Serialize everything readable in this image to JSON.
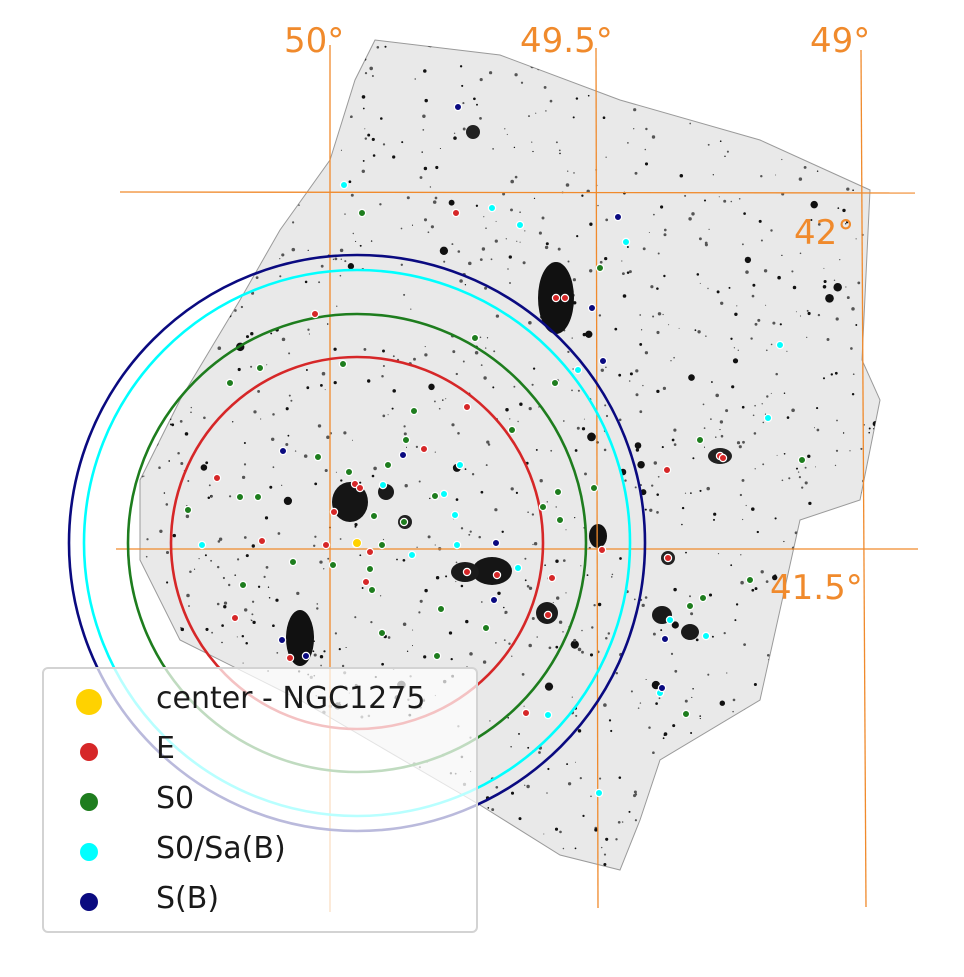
{
  "axis_labels": {
    "ra": [
      "50°",
      "49.5°",
      "49°"
    ],
    "dec": [
      "42°",
      "41.5°"
    ]
  },
  "colors": {
    "grid": "#f08a2c",
    "center": "#ffd200",
    "E": "#d62728",
    "S0": "#1e7d1e",
    "S0_SaB": "#00ffff",
    "SB": "#0a0a80"
  },
  "legend": {
    "items": [
      {
        "label": "center - NGC1275",
        "color": "#ffd200"
      },
      {
        "label": "E",
        "color": "#d62728"
      },
      {
        "label": "S0",
        "color": "#1e7d1e"
      },
      {
        "label": "S0/Sa(B)",
        "color": "#00ffff"
      },
      {
        "label": "S(B)",
        "color": "#0a0a80"
      }
    ]
  }
}
